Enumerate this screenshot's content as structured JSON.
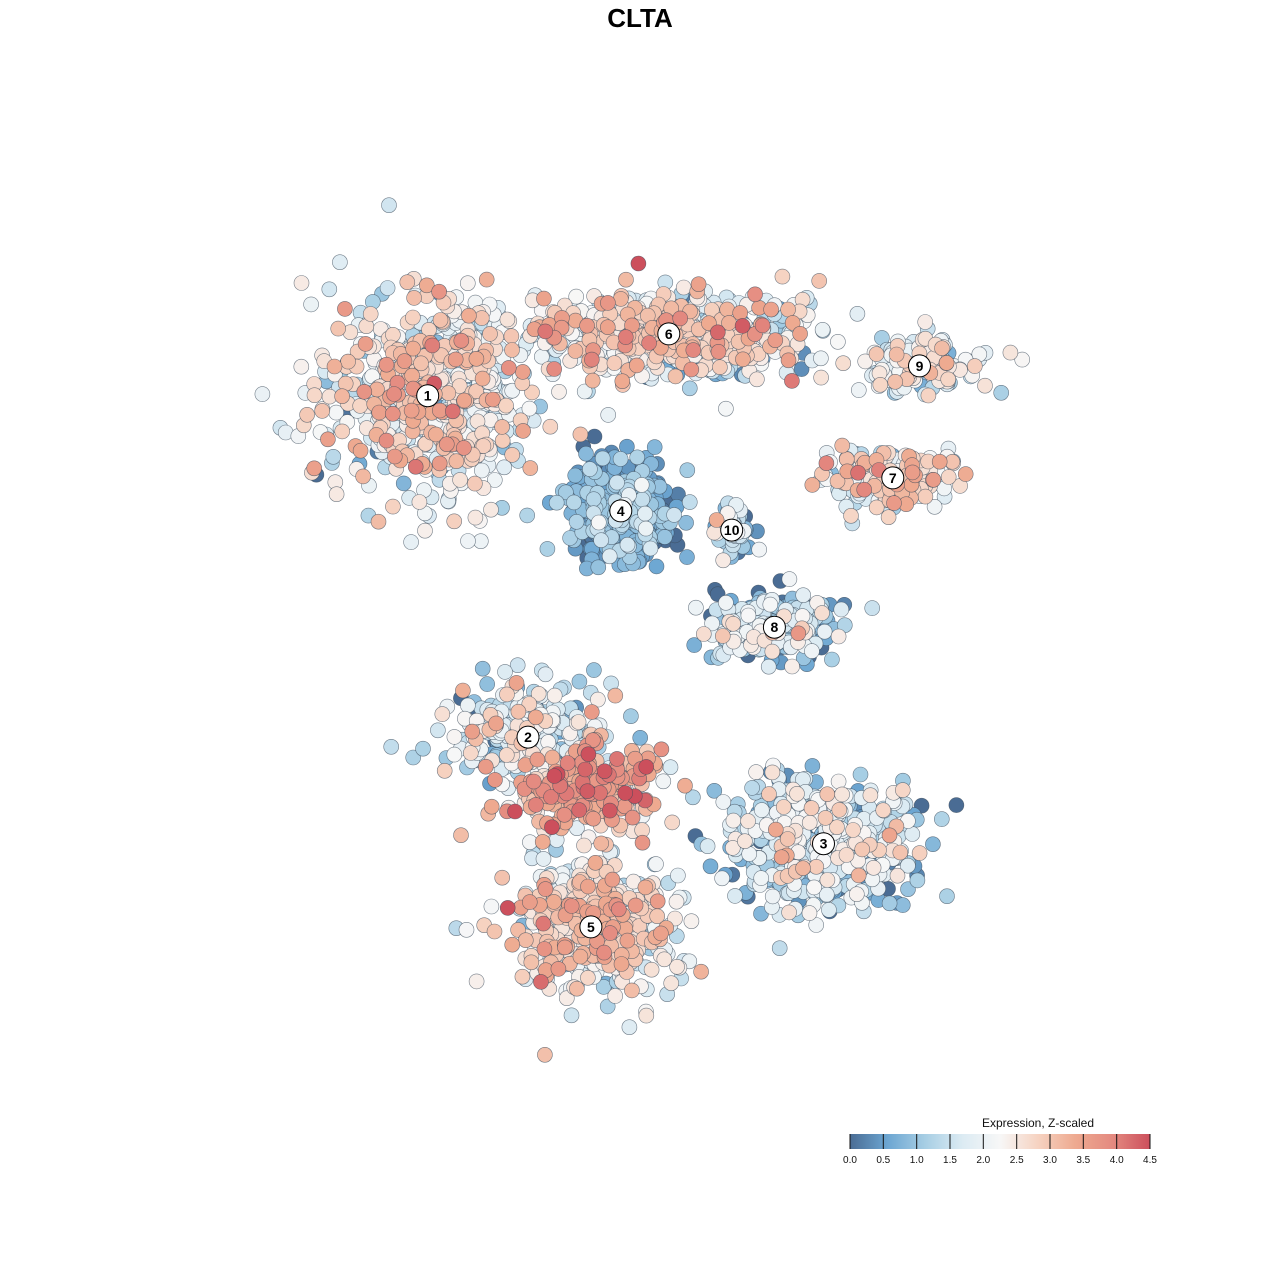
{
  "chart_data": {
    "type": "scatter",
    "title": "CLTA",
    "xlabel": "",
    "ylabel": "",
    "grid": false,
    "legend": {
      "title": "Expression, Z-scaled",
      "placement": "bottom-right",
      "range": [
        0,
        4.5
      ],
      "ticks": [
        "0.0",
        "0.5",
        "1.0",
        "1.5",
        "2.0",
        "2.5",
        "3.0",
        "3.5",
        "4.0",
        "4.5"
      ],
      "colors": [
        "#4a6c94",
        "#6ca6d2",
        "#a7cee4",
        "#dcebf3",
        "#f7f7f7",
        "#f6d3c2",
        "#eeaa90",
        "#e48a80",
        "#cc4f5c"
      ]
    },
    "xlim": [
      -45,
      45
    ],
    "ylim": [
      -45,
      45
    ],
    "clusters": [
      {
        "label": "1",
        "x": -19.9,
        "y": 22.9,
        "sx": 9,
        "sy": 8,
        "n": 700,
        "mean": 2.2,
        "sd": 0.75
      },
      {
        "label": "2",
        "x": -10.5,
        "y": -9.1,
        "sx": 7,
        "sy": 4,
        "n": 300,
        "mean": 1.6,
        "sd": 0.8
      },
      {
        "label": "3",
        "x": 17.2,
        "y": -19.1,
        "sx": 8,
        "sy": 5.5,
        "n": 550,
        "mean": 1.5,
        "sd": 0.75
      },
      {
        "label": "4",
        "x": -1.8,
        "y": 12.1,
        "sx": 4.2,
        "sy": 4,
        "n": 450,
        "mean": 0.6,
        "sd": 0.5
      },
      {
        "label": "5",
        "x": -4.6,
        "y": -26.9,
        "sx": 6.5,
        "sy": 5.5,
        "n": 550,
        "mean": 2.3,
        "sd": 0.7
      },
      {
        "label": "6",
        "x": 2.7,
        "y": 28.7,
        "sx": 12,
        "sy": 3.5,
        "n": 650,
        "mean": 2.1,
        "sd": 0.8
      },
      {
        "label": "7",
        "x": 23.7,
        "y": 15.2,
        "sx": 6,
        "sy": 2.5,
        "n": 200,
        "mean": 2.3,
        "sd": 0.8
      },
      {
        "label": "8",
        "x": 12.6,
        "y": 1.2,
        "sx": 5,
        "sy": 3,
        "n": 260,
        "mean": 1.2,
        "sd": 0.8
      },
      {
        "label": "9",
        "x": 26.2,
        "y": 25.7,
        "sx": 5,
        "sy": 2.5,
        "n": 150,
        "mean": 1.9,
        "sd": 0.8
      },
      {
        "label": "10",
        "x": 8.6,
        "y": 10.3,
        "sx": 1.6,
        "sy": 2,
        "n": 60,
        "mean": 1.4,
        "sd": 0.7
      }
    ],
    "hotspot": {
      "x": -5,
      "y": -14,
      "sx": 6,
      "sy": 3.5,
      "n": 260,
      "mean": 3.2,
      "sd": 0.6
    }
  }
}
